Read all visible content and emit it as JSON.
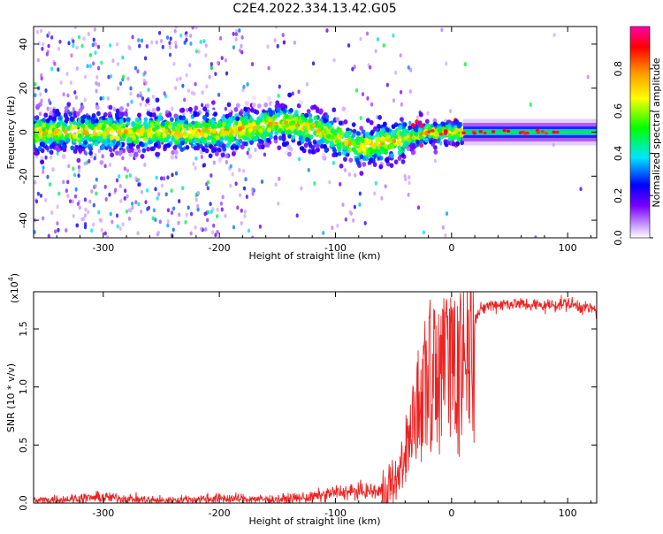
{
  "figure_title": "C2E4.2022.334.13.42.G05",
  "chart_data": [
    {
      "type": "heatmap",
      "xlabel": "Height of straight line (km)",
      "ylabel": "Frequency (Hz)",
      "xlim": [
        -360,
        125
      ],
      "ylim": [
        -48,
        48
      ],
      "x_ticks": [
        -300,
        -200,
        -100,
        0,
        100
      ],
      "y_ticks": [
        -40,
        -20,
        0,
        20,
        40
      ],
      "colorbar": {
        "label": "Normalized spectral amplitude",
        "range": [
          0,
          1
        ],
        "ticks": [
          "0.0",
          "0.2",
          "0.4",
          "0.6",
          "0.8"
        ],
        "colors": [
          "#ffffff",
          "#7a00ff",
          "#0000ff",
          "#00e5ff",
          "#00ff00",
          "#ffff00",
          "#ff9900",
          "#ff0000",
          "#ff00aa"
        ]
      },
      "trace_center_hz": [
        {
          "x": -360,
          "y": 0
        },
        {
          "x": -300,
          "y": 0
        },
        {
          "x": -200,
          "y": 0
        },
        {
          "x": -150,
          "y": 4
        },
        {
          "x": -120,
          "y": 2
        },
        {
          "x": -100,
          "y": -2
        },
        {
          "x": -80,
          "y": -7
        },
        {
          "x": -60,
          "y": -5
        },
        {
          "x": -40,
          "y": -3
        },
        {
          "x": -20,
          "y": 0
        },
        {
          "x": 0,
          "y": 0
        },
        {
          "x": 125,
          "y": 0
        }
      ]
    },
    {
      "type": "line",
      "xlabel": "Height of straight line (km)",
      "ylabel": "SNR (10 * v/v)",
      "y_scale_label": "(x10",
      "y_scale_exponent": "4",
      "xlim": [
        -360,
        125
      ],
      "ylim": [
        0,
        1.82
      ],
      "x_ticks": [
        -300,
        -200,
        -100,
        0,
        100
      ],
      "y_ticks": [
        "0.0",
        "0.5",
        "1.0",
        "1.5"
      ],
      "line_color": "#ee2222",
      "series": [
        {
          "x": [
            -360,
            -320,
            -300,
            -250,
            -200,
            -150,
            -120,
            -100,
            -80,
            -60,
            -50,
            -45,
            -40,
            -35,
            -30,
            -25,
            -20,
            -15,
            -10,
            -5,
            0,
            10,
            20,
            30,
            50,
            80,
            100,
            125
          ],
          "y": [
            0.02,
            0.04,
            0.05,
            0.02,
            0.04,
            0.03,
            0.05,
            0.09,
            0.1,
            0.1,
            0.15,
            0.3,
            0.5,
            0.7,
            0.9,
            1.1,
            1.25,
            1.3,
            1.15,
            1.25,
            1.3,
            1.45,
            1.6,
            1.7,
            1.72,
            1.7,
            1.72,
            1.66
          ]
        }
      ]
    }
  ]
}
